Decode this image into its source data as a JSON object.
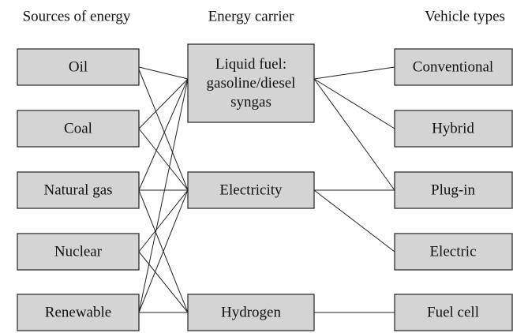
{
  "headers": [
    "Sources of energy",
    "Energy carrier",
    "Vehicle types"
  ],
  "sources": [
    "Oil",
    "Coal",
    "Natural gas",
    "Nuclear",
    "Renewable"
  ],
  "carriers": [
    [
      "Liquid fuel:",
      "gasoline/diesel",
      "syngas"
    ],
    [
      "Electricity"
    ],
    [
      "Hydrogen"
    ]
  ],
  "vehicles": [
    "Conventional",
    "Hybrid",
    "Plug-in",
    "Electric",
    "Fuel cell"
  ]
}
